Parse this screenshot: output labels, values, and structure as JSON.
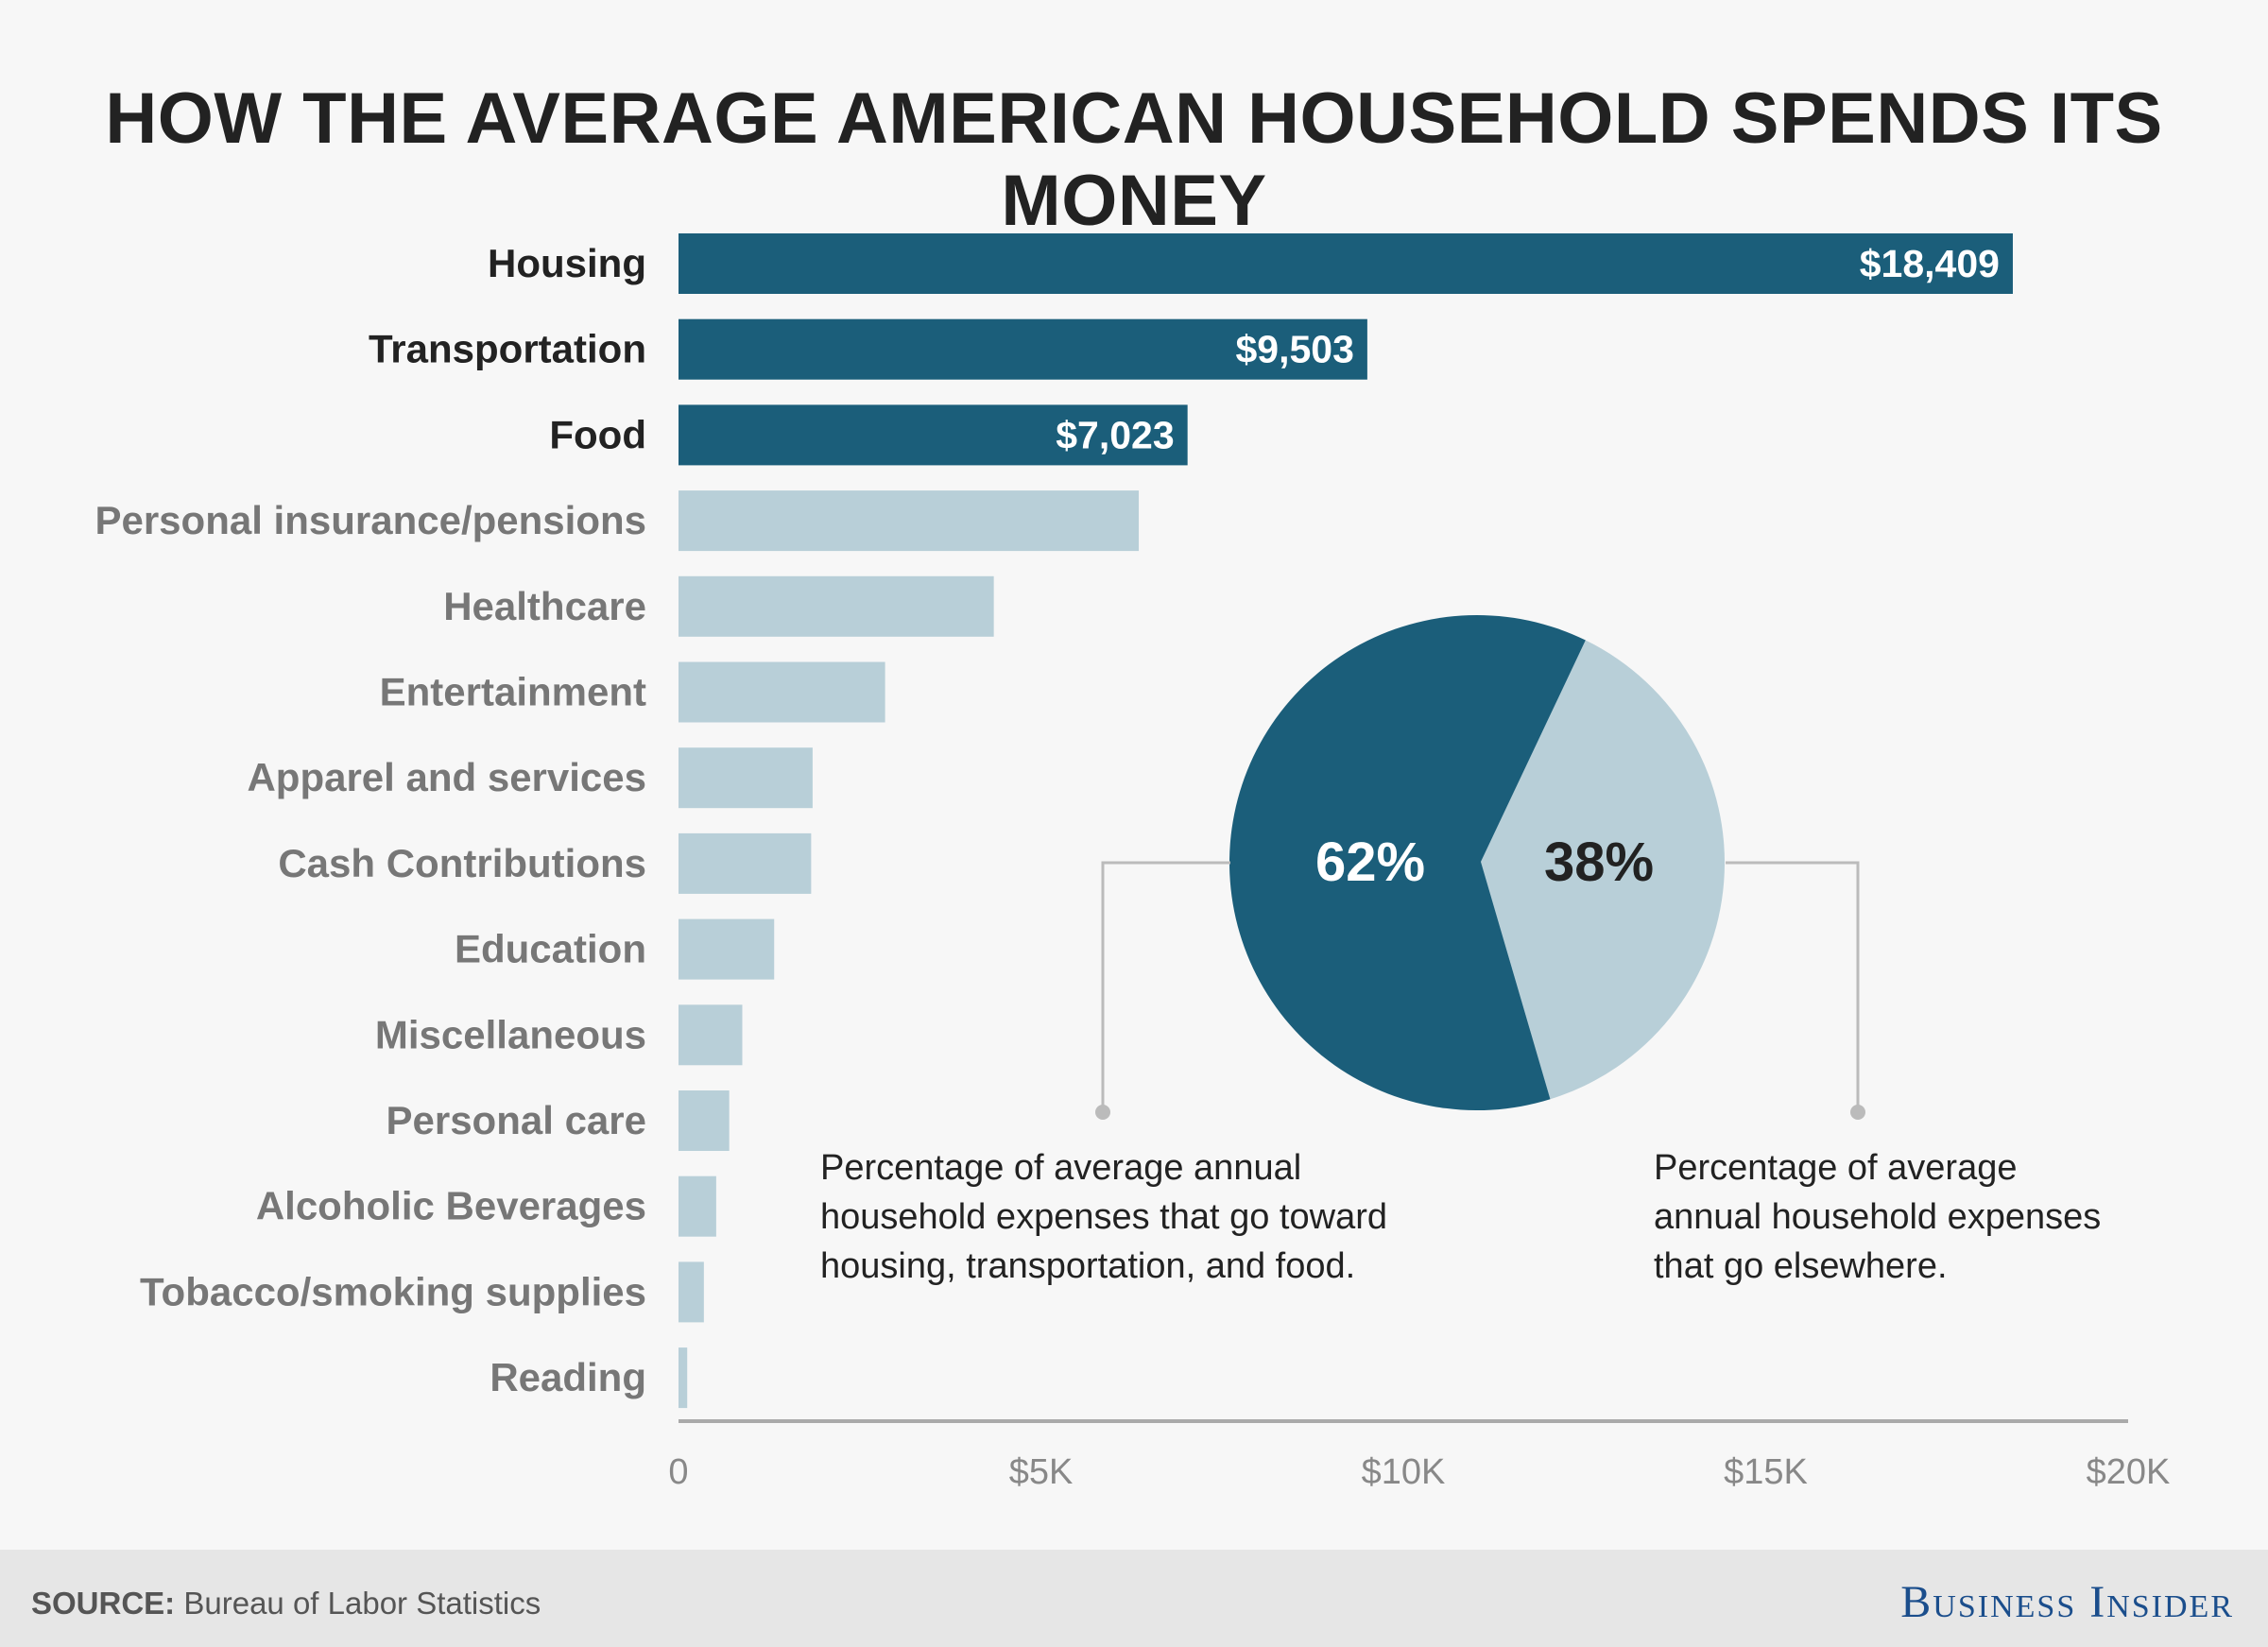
{
  "title": "HOW THE AVERAGE AMERICAN HOUSEHOLD SPENDS ITS MONEY",
  "footer": {
    "source_label": "SOURCE:",
    "source_text": "Bureau of Labor Statistics",
    "brand": "Business Insider"
  },
  "colors": {
    "highlight": "#1b5e7a",
    "muted": "#b8cfd8",
    "highlight_label": "#222222",
    "muted_label": "#777777",
    "axis": "#aaaaaa",
    "leader": "#bbbbbb"
  },
  "chart_data": [
    {
      "type": "bar",
      "orientation": "horizontal",
      "categories": [
        "Housing",
        "Transportation",
        "Food",
        "Personal insurance/pensions",
        "Healthcare",
        "Entertainment",
        "Apparel and services",
        "Cash Contributions",
        "Education",
        "Miscellaneous",
        "Personal care",
        "Alcoholic Beverages",
        "Tobacco/smoking supplies",
        "Reading"
      ],
      "values": [
        18409,
        9503,
        7023,
        6350,
        4350,
        2850,
        1850,
        1830,
        1320,
        880,
        700,
        520,
        350,
        120
      ],
      "highlighted": [
        true,
        true,
        true,
        false,
        false,
        false,
        false,
        false,
        false,
        false,
        false,
        false,
        false,
        false
      ],
      "data_labels": [
        "$18,409",
        "$9,503",
        "$7,023",
        "",
        "",
        "",
        "",
        "",
        "",
        "",
        "",
        "",
        "",
        ""
      ],
      "xlim": [
        0,
        20000
      ],
      "xticks": [
        0,
        5000,
        10000,
        15000,
        20000
      ],
      "xtick_labels": [
        "0",
        "$5K",
        "$10K",
        "$15K",
        "$20K"
      ],
      "grid": false
    },
    {
      "type": "pie",
      "values": [
        62,
        38
      ],
      "labels": [
        "62%",
        "38%"
      ],
      "annotations": [
        "Percentage of average annual household expenses that go toward housing, transportation, and food.",
        "Percentage of average annual household expenses that go elsewhere."
      ]
    }
  ]
}
